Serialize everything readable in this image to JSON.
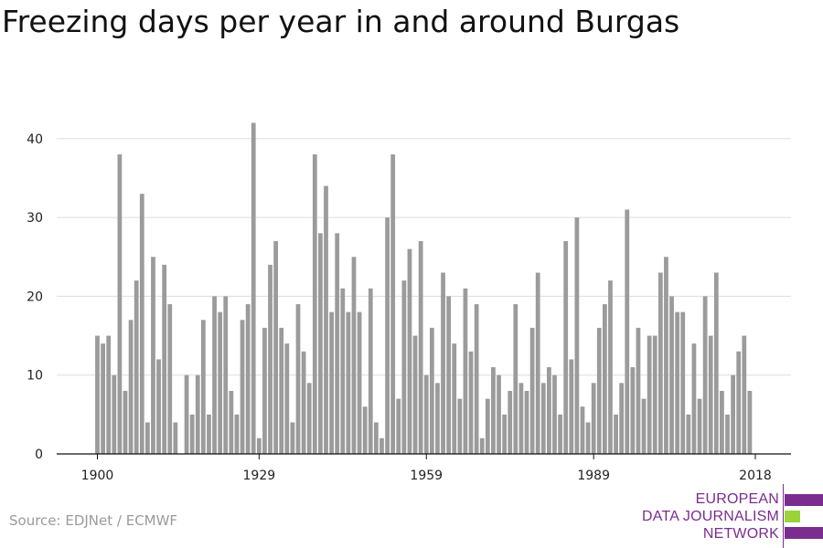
{
  "chart_data": {
    "type": "bar",
    "title": "Freezing days per year in and around Burgas",
    "xlabel": "",
    "ylabel": "",
    "x_start": 1900,
    "x_end": 2018,
    "xticks": [
      1900,
      1929,
      1959,
      1989,
      2018
    ],
    "yticks": [
      0,
      10,
      20,
      30,
      40
    ],
    "ylim": [
      0,
      45
    ],
    "grid": true,
    "bar_color": "#9b9b9b",
    "values": [
      15,
      14,
      15,
      10,
      38,
      8,
      17,
      22,
      33,
      4,
      25,
      12,
      24,
      19,
      4,
      0,
      10,
      5,
      10,
      17,
      5,
      20,
      18,
      20,
      8,
      5,
      17,
      19,
      42,
      2,
      16,
      24,
      27,
      16,
      14,
      4,
      19,
      13,
      9,
      38,
      28,
      34,
      18,
      28,
      21,
      18,
      25,
      18,
      6,
      21,
      4,
      2,
      30,
      38,
      7,
      22,
      26,
      15,
      27,
      10,
      16,
      9,
      23,
      20,
      14,
      7,
      21,
      13,
      19,
      2,
      7,
      11,
      10,
      5,
      8,
      19,
      9,
      8,
      16,
      23,
      9,
      11,
      10,
      5,
      27,
      12,
      30,
      6,
      4,
      9,
      16,
      19,
      22,
      5,
      9,
      31,
      11,
      16,
      7,
      15,
      15,
      23,
      25,
      20,
      18,
      18,
      5,
      14,
      7,
      20,
      15,
      23,
      8,
      5,
      10,
      13,
      15,
      8
    ]
  },
  "source": "Source: EDJNet / ECMWF",
  "logo": {
    "line1": "EUROPEAN",
    "line2": "DATA JOURNALISM",
    "line3": "NETWORK",
    "primary_color": "#7b2c8f",
    "accent_color": "#9ad33a"
  }
}
